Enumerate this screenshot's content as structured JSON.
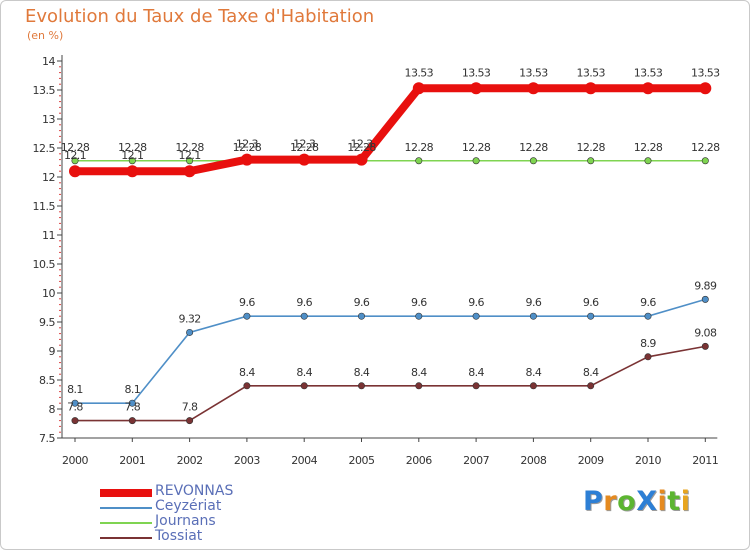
{
  "title": "Evolution du Taux de Taxe d'Habitation",
  "unit": "(en %)",
  "logo": {
    "text": "ProXiti",
    "letters": [
      "P",
      "r",
      "o",
      "X",
      "i",
      "t",
      "i"
    ],
    "colors": [
      "#2d7fd5",
      "#e58a1f",
      "#5cb531",
      "#2d7fd5",
      "#e58a1f",
      "#5cb531",
      "#e8a51e"
    ]
  },
  "chart_data": {
    "type": "line",
    "title": "Evolution du Taux de Taxe d'Habitation",
    "ylabel": "(en %)",
    "xlabel": "",
    "categories": [
      "2000",
      "2001",
      "2002",
      "2003",
      "2004",
      "2005",
      "2006",
      "2007",
      "2008",
      "2009",
      "2010",
      "2011"
    ],
    "ylim": [
      7.5,
      14
    ],
    "yticks": [
      "7.5",
      "8",
      "8.5",
      "9",
      "9.5",
      "10",
      "10.5",
      "11",
      "11.5",
      "12",
      "12.5",
      "13",
      "13.5",
      "14"
    ],
    "grid": false,
    "legend_position": "bottom-left",
    "series": [
      {
        "name": "REVONNAS",
        "color": "#e8100e",
        "thick": true,
        "values": [
          12.1,
          12.1,
          12.1,
          12.3,
          12.3,
          12.3,
          13.53,
          13.53,
          13.53,
          13.53,
          13.53,
          13.53
        ],
        "labels": [
          "12.1",
          "12.1",
          "12.1",
          "12.3",
          "12.3",
          "12.3",
          "13.53",
          "13.53",
          "13.53",
          "13.53",
          "13.53",
          "13.53"
        ]
      },
      {
        "name": "Ceyzériat",
        "color": "#4f8fc7",
        "thick": false,
        "values": [
          8.1,
          8.1,
          9.32,
          9.6,
          9.6,
          9.6,
          9.6,
          9.6,
          9.6,
          9.6,
          9.6,
          9.89
        ],
        "labels": [
          "8.1",
          "8.1",
          "9.32",
          "9.6",
          "9.6",
          "9.6",
          "9.6",
          "9.6",
          "9.6",
          "9.6",
          "9.6",
          "9.89"
        ]
      },
      {
        "name": "Journans",
        "color": "#7fd451",
        "thick": false,
        "values": [
          12.28,
          12.28,
          12.28,
          12.28,
          12.28,
          12.28,
          12.28,
          12.28,
          12.28,
          12.28,
          12.28,
          12.28
        ],
        "labels": [
          "12.28",
          "12.28",
          "12.28",
          "12.28",
          "12.28",
          "12.28",
          "12.28",
          "12.28",
          "12.28",
          "12.28",
          "12.28",
          "12.28"
        ]
      },
      {
        "name": "Tossiat",
        "color": "#7a3334",
        "thick": false,
        "values": [
          7.8,
          7.8,
          7.8,
          8.4,
          8.4,
          8.4,
          8.4,
          8.4,
          8.4,
          8.4,
          8.9,
          9.08
        ],
        "labels": [
          "7.8",
          "7.8",
          "7.8",
          "8.4",
          "8.4",
          "8.4",
          "8.4",
          "8.4",
          "8.4",
          "8.4",
          "8.9",
          "9.08"
        ]
      }
    ]
  }
}
